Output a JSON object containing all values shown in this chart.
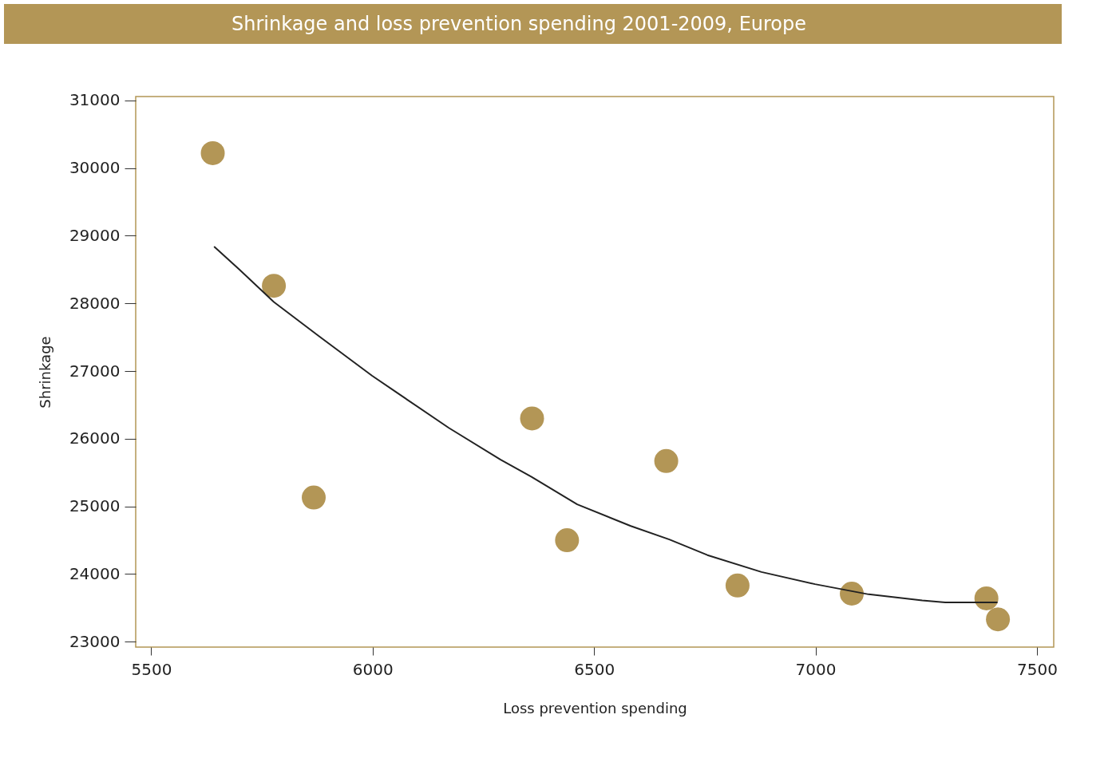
{
  "chart_data": {
    "type": "scatter",
    "title": "Shrinkage and loss prevention spending 2001-2009, Europe",
    "xlabel": "Loss prevention spending",
    "ylabel": "Shrinkage",
    "series": [
      {
        "color": "#b39656",
        "marker": "circle",
        "x": [
          5639,
          5777,
          5867,
          6360,
          6439,
          6663,
          6824,
          7082,
          7386,
          7412
        ],
        "values": [
          30220,
          28260,
          25130,
          26300,
          24500,
          25670,
          23830,
          23710,
          23640,
          23330
        ]
      },
      {
        "type": "line",
        "color": "#222222",
        "line_style": "solid",
        "x": [
          5642,
          5699,
          5777,
          5878,
          5999,
          6055,
          6172,
          6289,
          6358,
          6462,
          6583,
          6670,
          6756,
          6878,
          6999,
          7120,
          7241,
          7293,
          7411
        ],
        "values": [
          28840,
          28500,
          28020,
          27520,
          26930,
          26680,
          26160,
          25690,
          25440,
          25030,
          24710,
          24510,
          24280,
          24030,
          23850,
          23700,
          23610,
          23580,
          23580
        ]
      }
    ],
    "xlim": [
      5465,
      7538
    ],
    "ylim": [
      22920,
      31057
    ],
    "xticks": [
      5500,
      6000,
      6500,
      7000,
      7500
    ],
    "yticks": [
      23000,
      24000,
      25000,
      26000,
      27000,
      28000,
      29000,
      30000,
      31000
    ],
    "grid": false
  }
}
